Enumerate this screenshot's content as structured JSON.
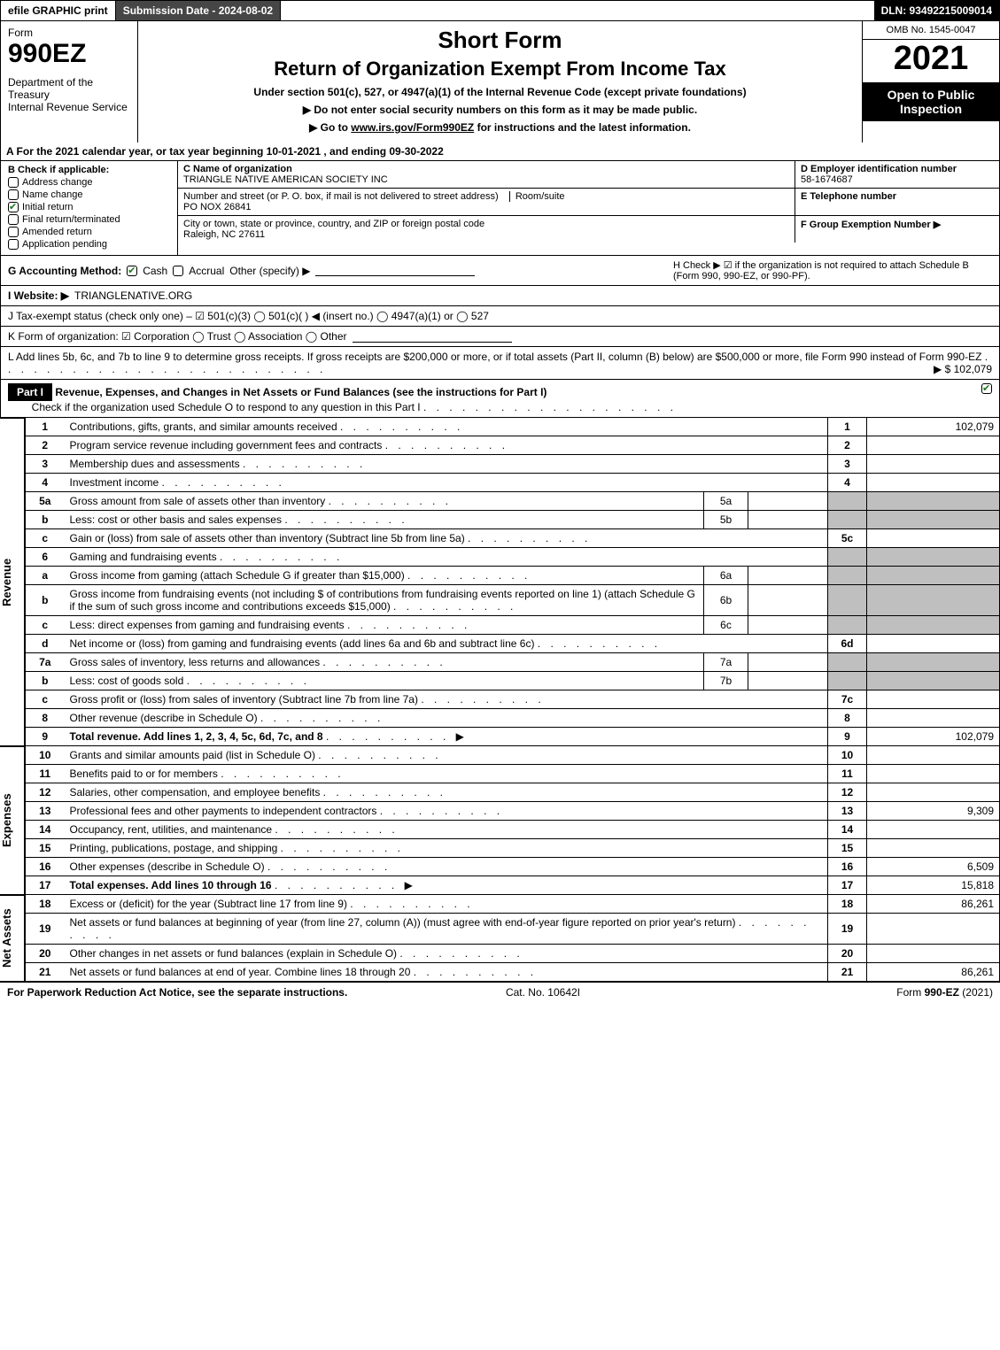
{
  "top": {
    "efile": "efile GRAPHIC print",
    "submission": "Submission Date - 2024-08-02",
    "dln": "DLN: 93492215009014"
  },
  "header": {
    "form_label": "Form",
    "form_num": "990EZ",
    "dept1": "Department of the Treasury",
    "dept2": "Internal Revenue Service",
    "title1": "Short Form",
    "title2": "Return of Organization Exempt From Income Tax",
    "sub1": "Under section 501(c), 527, or 4947(a)(1) of the Internal Revenue Code (except private foundations)",
    "sub2": "▶ Do not enter social security numbers on this form as it may be made public.",
    "sub3_pre": "▶ Go to ",
    "sub3_link": "www.irs.gov/Form990EZ",
    "sub3_post": " for instructions and the latest information.",
    "omb": "OMB No. 1545-0047",
    "year": "2021",
    "open": "Open to Public Inspection"
  },
  "A": "A  For the 2021 calendar year, or tax year beginning 10-01-2021 , and ending 09-30-2022",
  "B": {
    "label": "B  Check if applicable:",
    "items": [
      {
        "label": "Address change",
        "checked": false
      },
      {
        "label": "Name change",
        "checked": false
      },
      {
        "label": "Initial return",
        "checked": true
      },
      {
        "label": "Final return/terminated",
        "checked": false
      },
      {
        "label": "Amended return",
        "checked": false
      },
      {
        "label": "Application pending",
        "checked": false
      }
    ]
  },
  "C": {
    "name_lbl": "C Name of organization",
    "name": "TRIANGLE NATIVE AMERICAN SOCIETY INC",
    "street_lbl": "Number and street (or P. O. box, if mail is not delivered to street address)",
    "room_lbl": "Room/suite",
    "street": "PO NOX 26841",
    "city_lbl": "City or town, state or province, country, and ZIP or foreign postal code",
    "city": "Raleigh, NC  27611"
  },
  "D": {
    "lbl": "D Employer identification number",
    "val": "58-1674687"
  },
  "E": {
    "lbl": "E Telephone number",
    "val": ""
  },
  "F": {
    "lbl": "F Group Exemption Number  ▶",
    "val": ""
  },
  "G": {
    "lbl": "G Accounting Method:",
    "cash": "Cash",
    "accrual": "Accrual",
    "other": "Other (specify) ▶"
  },
  "H": "H   Check ▶ ☑ if the organization is not required to attach Schedule B (Form 990, 990-EZ, or 990-PF).",
  "I": {
    "lbl": "I Website: ▶",
    "val": "TRIANGLENATIVE.ORG"
  },
  "J": "J Tax-exempt status (check only one) – ☑ 501(c)(3)  ◯ 501(c)(  ) ◀ (insert no.)  ◯ 4947(a)(1) or  ◯ 527",
  "K": "K Form of organization:  ☑ Corporation  ◯ Trust  ◯ Association  ◯ Other",
  "L": {
    "text": "L Add lines 5b, 6c, and 7b to line 9 to determine gross receipts. If gross receipts are $200,000 or more, or if total assets (Part II, column (B) below) are $500,000 or more, file Form 990 instead of Form 990-EZ",
    "amt": "▶ $ 102,079"
  },
  "part1": {
    "head": "Part I",
    "title": "Revenue, Expenses, and Changes in Net Assets or Fund Balances (see the instructions for Part I)",
    "checkline": "Check if the organization used Schedule O to respond to any question in this Part I"
  },
  "side": {
    "rev": "Revenue",
    "exp": "Expenses",
    "net": "Net Assets"
  },
  "lines": [
    {
      "n": "1",
      "d": "Contributions, gifts, grants, and similar amounts received",
      "rn": "1",
      "rv": "102,079"
    },
    {
      "n": "2",
      "d": "Program service revenue including government fees and contracts",
      "rn": "2",
      "rv": ""
    },
    {
      "n": "3",
      "d": "Membership dues and assessments",
      "rn": "3",
      "rv": ""
    },
    {
      "n": "4",
      "d": "Investment income",
      "rn": "4",
      "rv": ""
    },
    {
      "n": "5a",
      "d": "Gross amount from sale of assets other than inventory",
      "sn": "5a",
      "sv": "",
      "shade": true
    },
    {
      "n": "b",
      "d": "Less: cost or other basis and sales expenses",
      "sn": "5b",
      "sv": "",
      "shade": true
    },
    {
      "n": "c",
      "d": "Gain or (loss) from sale of assets other than inventory (Subtract line 5b from line 5a)",
      "rn": "5c",
      "rv": ""
    },
    {
      "n": "6",
      "d": "Gaming and fundraising events",
      "shade": true,
      "noval": true
    },
    {
      "n": "a",
      "d": "Gross income from gaming (attach Schedule G if greater than $15,000)",
      "sn": "6a",
      "sv": "",
      "shade": true
    },
    {
      "n": "b",
      "d": "Gross income from fundraising events (not including $               of contributions from fundraising events reported on line 1) (attach Schedule G if the sum of such gross income and contributions exceeds $15,000)",
      "sn": "6b",
      "sv": "",
      "shade": true
    },
    {
      "n": "c",
      "d": "Less: direct expenses from gaming and fundraising events",
      "sn": "6c",
      "sv": "",
      "shade": true
    },
    {
      "n": "d",
      "d": "Net income or (loss) from gaming and fundraising events (add lines 6a and 6b and subtract line 6c)",
      "rn": "6d",
      "rv": ""
    },
    {
      "n": "7a",
      "d": "Gross sales of inventory, less returns and allowances",
      "sn": "7a",
      "sv": "",
      "shade": true
    },
    {
      "n": "b",
      "d": "Less: cost of goods sold",
      "sn": "7b",
      "sv": "",
      "shade": true
    },
    {
      "n": "c",
      "d": "Gross profit or (loss) from sales of inventory (Subtract line 7b from line 7a)",
      "rn": "7c",
      "rv": ""
    },
    {
      "n": "8",
      "d": "Other revenue (describe in Schedule O)",
      "rn": "8",
      "rv": ""
    },
    {
      "n": "9",
      "d": "Total revenue. Add lines 1, 2, 3, 4, 5c, 6d, 7c, and 8",
      "rn": "9",
      "rv": "102,079",
      "bold": true,
      "arrow": true
    }
  ],
  "exp_lines": [
    {
      "n": "10",
      "d": "Grants and similar amounts paid (list in Schedule O)",
      "rn": "10",
      "rv": ""
    },
    {
      "n": "11",
      "d": "Benefits paid to or for members",
      "rn": "11",
      "rv": ""
    },
    {
      "n": "12",
      "d": "Salaries, other compensation, and employee benefits",
      "rn": "12",
      "rv": ""
    },
    {
      "n": "13",
      "d": "Professional fees and other payments to independent contractors",
      "rn": "13",
      "rv": "9,309"
    },
    {
      "n": "14",
      "d": "Occupancy, rent, utilities, and maintenance",
      "rn": "14",
      "rv": ""
    },
    {
      "n": "15",
      "d": "Printing, publications, postage, and shipping",
      "rn": "15",
      "rv": ""
    },
    {
      "n": "16",
      "d": "Other expenses (describe in Schedule O)",
      "rn": "16",
      "rv": "6,509"
    },
    {
      "n": "17",
      "d": "Total expenses. Add lines 10 through 16",
      "rn": "17",
      "rv": "15,818",
      "bold": true,
      "arrow": true
    }
  ],
  "net_lines": [
    {
      "n": "18",
      "d": "Excess or (deficit) for the year (Subtract line 17 from line 9)",
      "rn": "18",
      "rv": "86,261"
    },
    {
      "n": "19",
      "d": "Net assets or fund balances at beginning of year (from line 27, column (A)) (must agree with end-of-year figure reported on prior year's return)",
      "rn": "19",
      "rv": ""
    },
    {
      "n": "20",
      "d": "Other changes in net assets or fund balances (explain in Schedule O)",
      "rn": "20",
      "rv": ""
    },
    {
      "n": "21",
      "d": "Net assets or fund balances at end of year. Combine lines 18 through 20",
      "rn": "21",
      "rv": "86,261"
    }
  ],
  "footer": {
    "left": "For Paperwork Reduction Act Notice, see the separate instructions.",
    "mid": "Cat. No. 10642I",
    "right": "Form 990-EZ (2021)"
  },
  "colors": {
    "black": "#000000",
    "white": "#ffffff",
    "gray_shade": "#bfbfbf",
    "dark_bar": "#464646",
    "check_green": "#1a7a1a"
  }
}
